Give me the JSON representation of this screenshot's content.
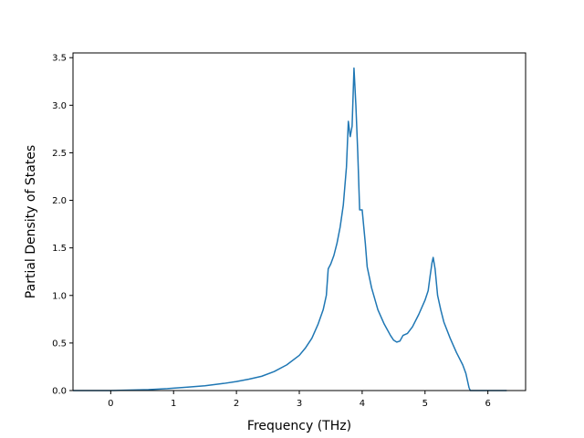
{
  "chart_data": {
    "type": "line",
    "title": "",
    "xlabel": "Frequency (THz)",
    "ylabel": "Partial Density of States",
    "xlim": [
      -0.6,
      6.6
    ],
    "ylim": [
      0.0,
      3.55
    ],
    "xticks": [
      0,
      1,
      2,
      3,
      4,
      5,
      6
    ],
    "yticks": [
      0.0,
      0.5,
      1.0,
      1.5,
      2.0,
      2.5,
      3.0,
      3.5
    ],
    "xtick_labels": [
      "0",
      "1",
      "2",
      "3",
      "4",
      "5",
      "6"
    ],
    "ytick_labels": [
      "0.0",
      "0.5",
      "1.0",
      "1.5",
      "2.0",
      "2.5",
      "3.0",
      "3.5"
    ],
    "grid": false,
    "legend": "none",
    "series": [
      {
        "color": "#1f77b4",
        "points": [
          [
            -0.6,
            0.0
          ],
          [
            0.0,
            0.0
          ],
          [
            0.3,
            0.005
          ],
          [
            0.6,
            0.01
          ],
          [
            0.9,
            0.02
          ],
          [
            1.2,
            0.035
          ],
          [
            1.5,
            0.05
          ],
          [
            1.8,
            0.075
          ],
          [
            2.0,
            0.095
          ],
          [
            2.2,
            0.12
          ],
          [
            2.4,
            0.15
          ],
          [
            2.6,
            0.2
          ],
          [
            2.8,
            0.27
          ],
          [
            3.0,
            0.37
          ],
          [
            3.1,
            0.45
          ],
          [
            3.2,
            0.55
          ],
          [
            3.3,
            0.7
          ],
          [
            3.38,
            0.85
          ],
          [
            3.43,
            1.0
          ],
          [
            3.46,
            1.28
          ],
          [
            3.5,
            1.33
          ],
          [
            3.55,
            1.42
          ],
          [
            3.6,
            1.55
          ],
          [
            3.65,
            1.72
          ],
          [
            3.7,
            1.95
          ],
          [
            3.75,
            2.35
          ],
          [
            3.78,
            2.83
          ],
          [
            3.81,
            2.67
          ],
          [
            3.84,
            2.78
          ],
          [
            3.87,
            3.39
          ],
          [
            3.9,
            3.0
          ],
          [
            3.93,
            2.5
          ],
          [
            3.96,
            1.9
          ],
          [
            4.0,
            1.9
          ],
          [
            4.05,
            1.55
          ],
          [
            4.08,
            1.3
          ],
          [
            4.15,
            1.08
          ],
          [
            4.25,
            0.85
          ],
          [
            4.35,
            0.7
          ],
          [
            4.45,
            0.58
          ],
          [
            4.5,
            0.53
          ],
          [
            4.55,
            0.51
          ],
          [
            4.6,
            0.52
          ],
          [
            4.65,
            0.58
          ],
          [
            4.72,
            0.6
          ],
          [
            4.8,
            0.67
          ],
          [
            4.9,
            0.8
          ],
          [
            5.0,
            0.95
          ],
          [
            5.05,
            1.05
          ],
          [
            5.08,
            1.2
          ],
          [
            5.11,
            1.34
          ],
          [
            5.13,
            1.4
          ],
          [
            5.16,
            1.28
          ],
          [
            5.2,
            1.0
          ],
          [
            5.25,
            0.85
          ],
          [
            5.3,
            0.72
          ],
          [
            5.4,
            0.55
          ],
          [
            5.5,
            0.4
          ],
          [
            5.6,
            0.27
          ],
          [
            5.65,
            0.18
          ],
          [
            5.7,
            0.03
          ],
          [
            5.72,
            0.0
          ],
          [
            6.3,
            0.0
          ]
        ]
      }
    ]
  }
}
